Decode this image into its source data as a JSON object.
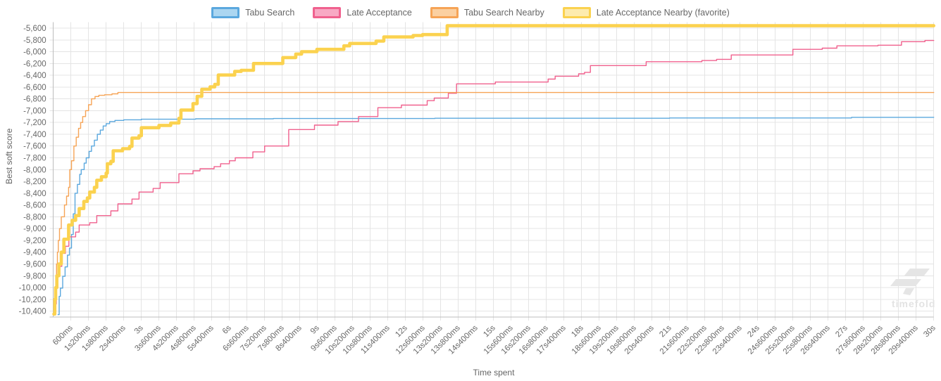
{
  "legend": {
    "items": [
      {
        "label": "Tabu Search",
        "line_color": "#5BA8DE",
        "fill_color": "#ABD6F1"
      },
      {
        "label": "Late Acceptance",
        "line_color": "#F0618E",
        "fill_color": "#F8A9C4"
      },
      {
        "label": "Tabu Search Nearby",
        "line_color": "#F6A456",
        "fill_color": "#FBD0A1"
      },
      {
        "label": "Late Acceptance Nearby (favorite)",
        "line_color": "#FBD24F",
        "fill_color": "#FDEBAE"
      }
    ]
  },
  "watermark": {
    "text": "timefold"
  },
  "chart_data": {
    "type": "line",
    "step_interpolation": "after",
    "xlabel": "Time spent",
    "ylabel": "Best soft score",
    "xlim_seconds": [
      0,
      30
    ],
    "ylim": [
      -10500,
      -5500
    ],
    "grid": true,
    "legend_position": "top",
    "x_tick_seconds": [
      0.6,
      1.2,
      1.8,
      2.4,
      3,
      3.6,
      4.2,
      4.8,
      5.4,
      6,
      6.6,
      7.2,
      7.8,
      8.4,
      9,
      9.6,
      10.2,
      10.8,
      11.4,
      12,
      12.6,
      13.2,
      13.8,
      14.4,
      15,
      15.6,
      16.2,
      16.8,
      17.4,
      18,
      18.6,
      19.2,
      19.8,
      20.4,
      21,
      21.6,
      22.2,
      22.8,
      23.4,
      24,
      24.6,
      25.2,
      25.8,
      26.4,
      27,
      27.6,
      28.2,
      28.8,
      29.4,
      30
    ],
    "x_tick_labels": [
      "600ms",
      "1s200ms",
      "1s800ms",
      "2s400ms",
      "3s",
      "3s600ms",
      "4s200ms",
      "4s800ms",
      "5s400ms",
      "6s",
      "6s600ms",
      "7s200ms",
      "7s800ms",
      "8s400ms",
      "9s",
      "9s600ms",
      "10s200ms",
      "10s800ms",
      "11s400ms",
      "12s",
      "12s600ms",
      "13s200ms",
      "13s800ms",
      "14s400ms",
      "15s",
      "15s600ms",
      "16s200ms",
      "16s800ms",
      "17s400ms",
      "18s",
      "18s600ms",
      "19s200ms",
      "19s800ms",
      "20s400ms",
      "21s",
      "21s600ms",
      "22s200ms",
      "22s800ms",
      "23s400ms",
      "24s",
      "24s600ms",
      "25s200ms",
      "25s800ms",
      "26s400ms",
      "27s",
      "27s600ms",
      "28s200ms",
      "28s800ms",
      "29s400ms",
      "30s"
    ],
    "y_tick_values": [
      -5600,
      -5800,
      -6000,
      -6200,
      -6400,
      -6600,
      -6800,
      -7000,
      -7200,
      -7400,
      -7600,
      -7800,
      -8000,
      -8200,
      -8400,
      -8600,
      -8800,
      -9000,
      -9200,
      -9400,
      -9600,
      -9800,
      -10000,
      -10200,
      -10400
    ],
    "y_tick_labels": [
      "-5,600",
      "-5,800",
      "-6,000",
      "-6,200",
      "-6,400",
      "-6,600",
      "-6,800",
      "-7,000",
      "-7,200",
      "-7,400",
      "-7,600",
      "-7,800",
      "-8,000",
      "-8,200",
      "-8,400",
      "-8,600",
      "-8,800",
      "-9,000",
      "-9,200",
      "-9,400",
      "-9,600",
      "-9,800",
      "-10,000",
      "-10,200",
      "-10,400"
    ],
    "series": [
      {
        "name": "Tabu Search",
        "color": "#5BA8DE",
        "width": 1.4,
        "points": [
          [
            0.16,
            -10460
          ],
          [
            0.2,
            -10150
          ],
          [
            0.24,
            -10010
          ],
          [
            0.32,
            -9810
          ],
          [
            0.4,
            -9650
          ],
          [
            0.48,
            -9450
          ],
          [
            0.55,
            -9330
          ],
          [
            0.62,
            -9100
          ],
          [
            0.68,
            -8750
          ],
          [
            0.74,
            -8400
          ],
          [
            0.82,
            -8250
          ],
          [
            0.9,
            -8080
          ],
          [
            0.95,
            -8000
          ],
          [
            1.05,
            -7890
          ],
          [
            1.12,
            -7800
          ],
          [
            1.22,
            -7690
          ],
          [
            1.3,
            -7600
          ],
          [
            1.4,
            -7500
          ],
          [
            1.5,
            -7400
          ],
          [
            1.6,
            -7330
          ],
          [
            1.7,
            -7260
          ],
          [
            1.8,
            -7220
          ],
          [
            1.92,
            -7185
          ],
          [
            2.1,
            -7165
          ],
          [
            2.4,
            -7155
          ],
          [
            3.0,
            -7145
          ],
          [
            4.85,
            -7138
          ],
          [
            7.5,
            -7133
          ],
          [
            13.0,
            -7128
          ],
          [
            21.0,
            -7124
          ],
          [
            27.2,
            -7113
          ],
          [
            30,
            -7113
          ]
        ]
      },
      {
        "name": "Late Acceptance",
        "color": "#F0618E",
        "width": 1.4,
        "points": [
          [
            0.02,
            -10440
          ],
          [
            0.06,
            -10280
          ],
          [
            0.1,
            -9990
          ],
          [
            0.15,
            -9800
          ],
          [
            0.22,
            -9640
          ],
          [
            0.29,
            -9420
          ],
          [
            0.41,
            -9300
          ],
          [
            0.53,
            -9140
          ],
          [
            0.76,
            -9060
          ],
          [
            0.88,
            -8940
          ],
          [
            1.24,
            -8900
          ],
          [
            1.48,
            -8780
          ],
          [
            1.96,
            -8700
          ],
          [
            2.2,
            -8580
          ],
          [
            2.68,
            -8500
          ],
          [
            2.92,
            -8380
          ],
          [
            3.4,
            -8320
          ],
          [
            3.64,
            -8220
          ],
          [
            4.28,
            -8070
          ],
          [
            4.76,
            -8020
          ],
          [
            5.0,
            -7985
          ],
          [
            5.48,
            -7950
          ],
          [
            5.7,
            -7900
          ],
          [
            6.0,
            -7850
          ],
          [
            6.2,
            -7800
          ],
          [
            6.8,
            -7700
          ],
          [
            7.2,
            -7600
          ],
          [
            8.02,
            -7320
          ],
          [
            8.9,
            -7245
          ],
          [
            9.7,
            -7185
          ],
          [
            10.4,
            -7100
          ],
          [
            11.06,
            -6950
          ],
          [
            11.86,
            -6905
          ],
          [
            12.74,
            -6830
          ],
          [
            12.98,
            -6785
          ],
          [
            13.46,
            -6705
          ],
          [
            13.74,
            -6545
          ],
          [
            15.06,
            -6515
          ],
          [
            16.86,
            -6465
          ],
          [
            17.1,
            -6415
          ],
          [
            17.9,
            -6375
          ],
          [
            18.1,
            -6350
          ],
          [
            18.3,
            -6235
          ],
          [
            20.2,
            -6170
          ],
          [
            22.1,
            -6150
          ],
          [
            22.6,
            -6130
          ],
          [
            23.1,
            -6055
          ],
          [
            25.2,
            -5960
          ],
          [
            26.2,
            -5940
          ],
          [
            26.7,
            -5900
          ],
          [
            28.1,
            -5890
          ],
          [
            28.9,
            -5830
          ],
          [
            29.7,
            -5810
          ],
          [
            30,
            -5810
          ]
        ]
      },
      {
        "name": "Tabu Search Nearby",
        "color": "#F6A456",
        "width": 1.4,
        "points": [
          [
            0.02,
            -10450
          ],
          [
            0.05,
            -10330
          ],
          [
            0.08,
            -10000
          ],
          [
            0.11,
            -9600
          ],
          [
            0.14,
            -9400
          ],
          [
            0.17,
            -9200
          ],
          [
            0.21,
            -9000
          ],
          [
            0.27,
            -8800
          ],
          [
            0.38,
            -8600
          ],
          [
            0.45,
            -8450
          ],
          [
            0.52,
            -8300
          ],
          [
            0.56,
            -8000
          ],
          [
            0.62,
            -7850
          ],
          [
            0.7,
            -7600
          ],
          [
            0.78,
            -7450
          ],
          [
            0.86,
            -7300
          ],
          [
            0.93,
            -7200
          ],
          [
            1.0,
            -7100
          ],
          [
            1.1,
            -7000
          ],
          [
            1.2,
            -6900
          ],
          [
            1.3,
            -6800
          ],
          [
            1.42,
            -6760
          ],
          [
            1.55,
            -6740
          ],
          [
            1.75,
            -6730
          ],
          [
            2.0,
            -6715
          ],
          [
            2.2,
            -6692
          ],
          [
            30,
            -6692
          ]
        ]
      },
      {
        "name": "Late Acceptance Nearby (favorite)",
        "color": "#FBD24F",
        "width": 4.6,
        "points": [
          [
            0.02,
            -10450
          ],
          [
            0.05,
            -10200
          ],
          [
            0.08,
            -10000
          ],
          [
            0.12,
            -9800
          ],
          [
            0.19,
            -9600
          ],
          [
            0.27,
            -9400
          ],
          [
            0.36,
            -9180
          ],
          [
            0.52,
            -8940
          ],
          [
            0.64,
            -8860
          ],
          [
            0.76,
            -8780
          ],
          [
            0.88,
            -8660
          ],
          [
            1.04,
            -8540
          ],
          [
            1.16,
            -8480
          ],
          [
            1.24,
            -8380
          ],
          [
            1.4,
            -8300
          ],
          [
            1.48,
            -8180
          ],
          [
            1.64,
            -8120
          ],
          [
            1.8,
            -8060
          ],
          [
            1.84,
            -7900
          ],
          [
            1.96,
            -7860
          ],
          [
            2.04,
            -7680
          ],
          [
            2.36,
            -7645
          ],
          [
            2.6,
            -7605
          ],
          [
            2.68,
            -7465
          ],
          [
            2.92,
            -7425
          ],
          [
            3.0,
            -7290
          ],
          [
            3.6,
            -7250
          ],
          [
            4.0,
            -7210
          ],
          [
            4.28,
            -7130
          ],
          [
            4.35,
            -6990
          ],
          [
            4.76,
            -6880
          ],
          [
            4.9,
            -6756
          ],
          [
            5.06,
            -6637
          ],
          [
            5.34,
            -6597
          ],
          [
            5.5,
            -6554
          ],
          [
            5.62,
            -6395
          ],
          [
            6.18,
            -6335
          ],
          [
            6.4,
            -6315
          ],
          [
            6.82,
            -6200
          ],
          [
            7.82,
            -6100
          ],
          [
            8.26,
            -6040
          ],
          [
            8.46,
            -6000
          ],
          [
            8.98,
            -5960
          ],
          [
            9.9,
            -5900
          ],
          [
            10.1,
            -5860
          ],
          [
            11.0,
            -5820
          ],
          [
            11.26,
            -5750
          ],
          [
            12.26,
            -5725
          ],
          [
            12.58,
            -5710
          ],
          [
            13.42,
            -5560
          ],
          [
            30,
            -5560
          ]
        ]
      }
    ]
  }
}
